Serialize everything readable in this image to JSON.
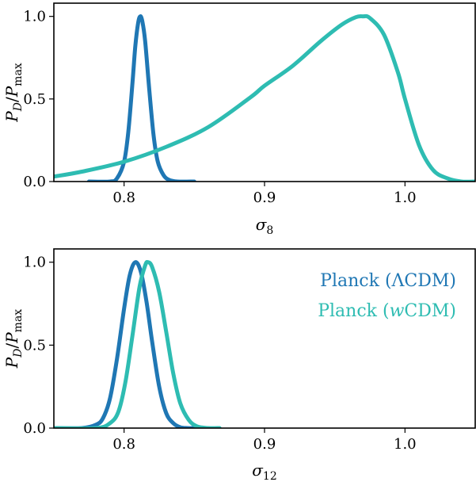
{
  "chart_data": [
    {
      "type": "line",
      "panel": "top",
      "xlabel": "σ8",
      "ylabel": "P_D/P_max",
      "xlim": [
        0.75,
        1.05
      ],
      "ylim": [
        0.0,
        1.08
      ],
      "xticks": [
        0.8,
        0.9,
        1.0
      ],
      "xtick_labels": [
        "0.8",
        "0.9",
        "1.0"
      ],
      "yticks": [
        0.0,
        0.5,
        1.0
      ],
      "ytick_labels": [
        "0.0",
        "0.5",
        "1.0"
      ],
      "series": [
        {
          "color": "#1f77b4",
          "x": [
            0.775,
            0.79,
            0.795,
            0.8,
            0.803,
            0.806,
            0.808,
            0.81,
            0.8115,
            0.813,
            0.815,
            0.818,
            0.821,
            0.824,
            0.828,
            0.832,
            0.838,
            0.85
          ],
          "y": [
            0.0,
            0.0,
            0.02,
            0.12,
            0.3,
            0.6,
            0.82,
            0.96,
            1.0,
            0.97,
            0.85,
            0.55,
            0.28,
            0.12,
            0.04,
            0.01,
            0.0,
            0.0
          ]
        },
        {
          "color": "#2ebcb2",
          "x": [
            0.75,
            0.77,
            0.8,
            0.83,
            0.86,
            0.89,
            0.9,
            0.92,
            0.94,
            0.955,
            0.965,
            0.97,
            0.975,
            0.985,
            0.995,
            1.0,
            1.01,
            1.02,
            1.03,
            1.04,
            1.05
          ],
          "y": [
            0.03,
            0.06,
            0.12,
            0.21,
            0.33,
            0.51,
            0.58,
            0.7,
            0.85,
            0.95,
            0.995,
            1.0,
            0.99,
            0.89,
            0.66,
            0.5,
            0.22,
            0.07,
            0.02,
            0.0,
            0.0
          ]
        }
      ]
    },
    {
      "type": "line",
      "panel": "bottom",
      "xlabel": "σ12",
      "ylabel": "P_D/P_max",
      "xlim": [
        0.75,
        1.05
      ],
      "ylim": [
        0.0,
        1.08
      ],
      "xticks": [
        0.8,
        0.9,
        1.0
      ],
      "xtick_labels": [
        "0.8",
        "0.9",
        "1.0"
      ],
      "yticks": [
        0.0,
        0.5,
        1.0
      ],
      "ytick_labels": [
        "0.0",
        "0.5",
        "1.0"
      ],
      "legend": {
        "placement": "top-right",
        "entries": [
          "Planck (ΛCDM)",
          "Planck (wCDM)"
        ]
      },
      "series": [
        {
          "name": "Planck (ΛCDM)",
          "color": "#1f77b4",
          "x": [
            0.75,
            0.77,
            0.78,
            0.785,
            0.79,
            0.795,
            0.8,
            0.804,
            0.808,
            0.812,
            0.816,
            0.82,
            0.825,
            0.83,
            0.835,
            0.84,
            0.845,
            0.85
          ],
          "y": [
            0.0,
            0.0,
            0.02,
            0.06,
            0.18,
            0.42,
            0.72,
            0.92,
            1.0,
            0.94,
            0.76,
            0.52,
            0.25,
            0.09,
            0.03,
            0.005,
            0.0,
            0.0
          ]
        },
        {
          "name": "Planck (wCDM)",
          "color": "#2ebcb2",
          "x": [
            0.75,
            0.78,
            0.79,
            0.796,
            0.801,
            0.806,
            0.811,
            0.815,
            0.817,
            0.82,
            0.825,
            0.83,
            0.835,
            0.84,
            0.846,
            0.852,
            0.86,
            0.868
          ],
          "y": [
            0.0,
            0.0,
            0.03,
            0.1,
            0.28,
            0.56,
            0.85,
            0.98,
            1.0,
            0.97,
            0.82,
            0.58,
            0.33,
            0.15,
            0.05,
            0.01,
            0.0,
            0.0
          ]
        }
      ]
    }
  ]
}
